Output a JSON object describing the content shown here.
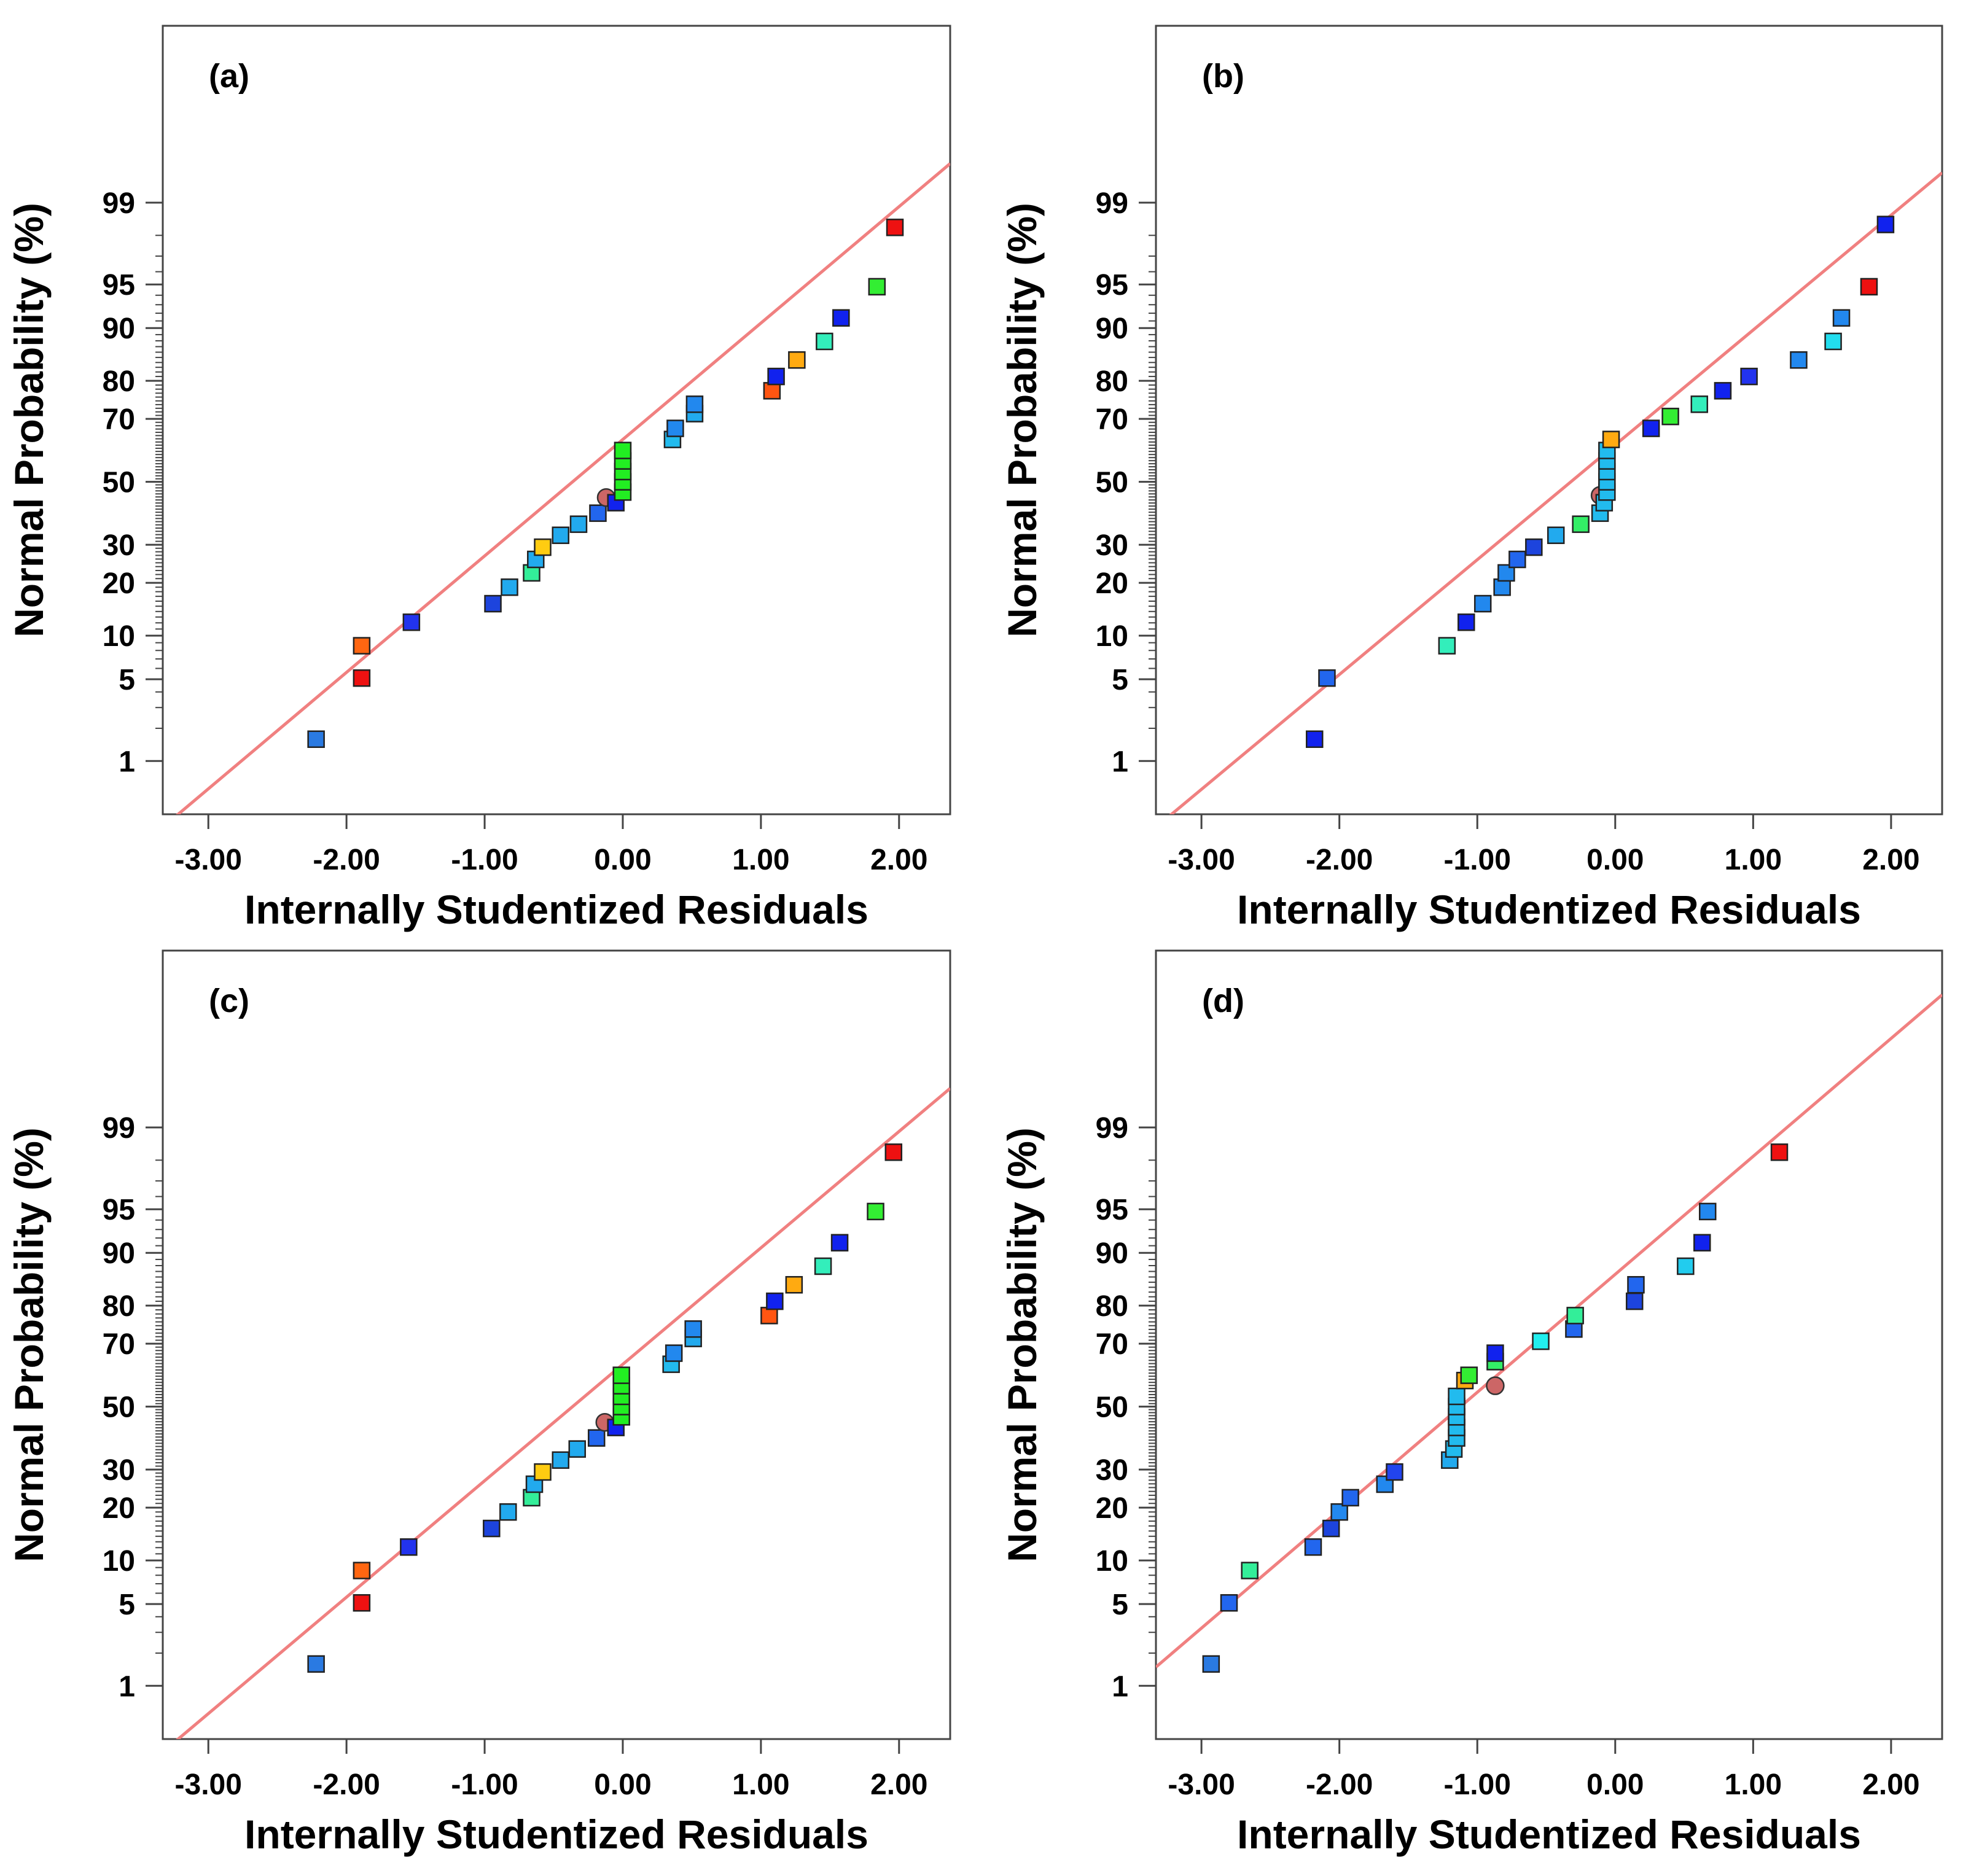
{
  "figure": {
    "x_axis_title": "Internally Studentized Residuals",
    "y_axis_title": "Normal Probability (%)",
    "x_ticks": [
      "-3.00",
      "-2.00",
      "-1.00",
      "0.00",
      "1.00",
      "2.00"
    ],
    "y_ticks": [
      "1",
      "5",
      "10",
      "20",
      "30",
      "50",
      "70",
      "80",
      "90",
      "95",
      "99"
    ]
  },
  "chart_data": [
    {
      "type": "scatter",
      "label": "(a)",
      "xlabel": "Internally Studentized Residuals",
      "ylabel": "Normal Probability (%)",
      "xlim": [
        -3.33,
        2.37
      ],
      "y_scale": "normal-probability",
      "grid": false,
      "reference_line": {
        "color": "#f08080",
        "points": [
          [
            -3.33,
            0.2
          ],
          [
            2.37,
            99.6
          ]
        ]
      },
      "points": [
        {
          "x": -2.22,
          "y": 1.6,
          "color": "#2a7ae2"
        },
        {
          "x": -1.89,
          "y": 5.1,
          "color": "#ee1111"
        },
        {
          "x": -1.89,
          "y": 8.6,
          "color": "#ff6611"
        },
        {
          "x": -1.53,
          "y": 12.1,
          "color": "#2233ee"
        },
        {
          "x": -0.94,
          "y": 15.5,
          "color": "#1d44dd"
        },
        {
          "x": -0.82,
          "y": 19.0,
          "color": "#22aaee"
        },
        {
          "x": -0.66,
          "y": 22.4,
          "color": "#33ee99"
        },
        {
          "x": -0.63,
          "y": 25.9,
          "color": "#22aaee"
        },
        {
          "x": -0.58,
          "y": 29.3,
          "color": "#ffcc11"
        },
        {
          "x": -0.45,
          "y": 32.8,
          "color": "#22aaee"
        },
        {
          "x": -0.32,
          "y": 36.2,
          "color": "#22aaee"
        },
        {
          "x": -0.18,
          "y": 39.7,
          "color": "#2266ee"
        },
        {
          "x": -0.12,
          "y": 44.8,
          "color": "#cc6666",
          "shape": "circle"
        },
        {
          "x": -0.05,
          "y": 43.1,
          "color": "#1122ee"
        },
        {
          "x": 0.0,
          "y": 46.6,
          "color": "#22ee22"
        },
        {
          "x": 0.0,
          "y": 50.0,
          "color": "#22ee22"
        },
        {
          "x": 0.0,
          "y": 53.4,
          "color": "#22ee22"
        },
        {
          "x": 0.0,
          "y": 56.9,
          "color": "#22ee22"
        },
        {
          "x": 0.0,
          "y": 60.3,
          "color": "#22ee22"
        },
        {
          "x": 0.36,
          "y": 63.8,
          "color": "#22bbee"
        },
        {
          "x": 0.38,
          "y": 67.2,
          "color": "#2288ee"
        },
        {
          "x": 0.52,
          "y": 71.5,
          "color": "#22aaee"
        },
        {
          "x": 0.52,
          "y": 74.1,
          "color": "#2288ee"
        },
        {
          "x": 1.08,
          "y": 77.6,
          "color": "#ff5511"
        },
        {
          "x": 1.11,
          "y": 81.0,
          "color": "#1122ee"
        },
        {
          "x": 1.26,
          "y": 84.5,
          "color": "#ffaa11"
        },
        {
          "x": 1.46,
          "y": 87.9,
          "color": "#33eebb"
        },
        {
          "x": 1.58,
          "y": 91.4,
          "color": "#1122ee"
        },
        {
          "x": 1.84,
          "y": 94.8,
          "color": "#33ee33"
        },
        {
          "x": 1.97,
          "y": 98.3,
          "color": "#ee1111"
        }
      ]
    },
    {
      "type": "scatter",
      "label": "(b)",
      "xlabel": "Internally Studentized Residuals",
      "ylabel": "Normal Probability (%)",
      "xlim": [
        -3.33,
        2.37
      ],
      "y_scale": "normal-probability",
      "grid": false,
      "reference_line": {
        "color": "#f08080",
        "points": [
          [
            -3.33,
            0.2
          ],
          [
            2.37,
            99.5
          ]
        ]
      },
      "points": [
        {
          "x": -2.18,
          "y": 1.6,
          "color": "#1122ee"
        },
        {
          "x": -2.09,
          "y": 5.1,
          "color": "#2266ee"
        },
        {
          "x": -1.22,
          "y": 8.6,
          "color": "#33eebb"
        },
        {
          "x": -1.08,
          "y": 12.1,
          "color": "#1122ee"
        },
        {
          "x": -0.96,
          "y": 15.5,
          "color": "#2288ee"
        },
        {
          "x": -0.82,
          "y": 19.0,
          "color": "#2288ee"
        },
        {
          "x": -0.79,
          "y": 22.4,
          "color": "#2288ee"
        },
        {
          "x": -0.71,
          "y": 25.9,
          "color": "#2266ee"
        },
        {
          "x": -0.59,
          "y": 29.3,
          "color": "#1d44dd"
        },
        {
          "x": -0.43,
          "y": 32.8,
          "color": "#22aaee"
        },
        {
          "x": -0.25,
          "y": 36.2,
          "color": "#33ee66"
        },
        {
          "x": -0.11,
          "y": 39.7,
          "color": "#22bbee"
        },
        {
          "x": -0.11,
          "y": 45.5,
          "color": "#cc6666",
          "shape": "circle"
        },
        {
          "x": -0.08,
          "y": 43.1,
          "color": "#22bbee"
        },
        {
          "x": -0.06,
          "y": 46.6,
          "color": "#22bbee"
        },
        {
          "x": -0.06,
          "y": 50.0,
          "color": "#22bbee"
        },
        {
          "x": -0.06,
          "y": 53.4,
          "color": "#22bbee"
        },
        {
          "x": -0.06,
          "y": 56.9,
          "color": "#22bbee"
        },
        {
          "x": -0.06,
          "y": 60.3,
          "color": "#22bbee"
        },
        {
          "x": -0.03,
          "y": 63.8,
          "color": "#ffaa11"
        },
        {
          "x": 0.26,
          "y": 67.2,
          "color": "#1122ee"
        },
        {
          "x": 0.4,
          "y": 70.7,
          "color": "#33ee33"
        },
        {
          "x": 0.61,
          "y": 74.1,
          "color": "#33eebb"
        },
        {
          "x": 0.78,
          "y": 77.6,
          "color": "#1122ee"
        },
        {
          "x": 0.97,
          "y": 81.0,
          "color": "#2233ee"
        },
        {
          "x": 1.33,
          "y": 84.5,
          "color": "#2288ee"
        },
        {
          "x": 1.58,
          "y": 87.9,
          "color": "#22ddee"
        },
        {
          "x": 1.64,
          "y": 91.4,
          "color": "#2288ee"
        },
        {
          "x": 1.84,
          "y": 94.8,
          "color": "#ee1111"
        },
        {
          "x": 1.96,
          "y": 98.4,
          "color": "#1122ee"
        }
      ]
    },
    {
      "type": "scatter",
      "label": "(c)",
      "xlabel": "Internally Studentized Residuals",
      "ylabel": "Normal Probability (%)",
      "xlim": [
        -3.33,
        2.37
      ],
      "y_scale": "normal-probability",
      "grid": false,
      "reference_line": {
        "color": "#f08080",
        "points": [
          [
            -3.33,
            0.2
          ],
          [
            2.37,
            99.6
          ]
        ]
      },
      "points": [
        {
          "x": -2.22,
          "y": 1.6,
          "color": "#2a7ae2"
        },
        {
          "x": -1.89,
          "y": 5.1,
          "color": "#ee1111"
        },
        {
          "x": -1.89,
          "y": 8.6,
          "color": "#ff6611"
        },
        {
          "x": -1.55,
          "y": 12.1,
          "color": "#2233ee"
        },
        {
          "x": -0.95,
          "y": 15.5,
          "color": "#1d44dd"
        },
        {
          "x": -0.83,
          "y": 19.0,
          "color": "#22aaee"
        },
        {
          "x": -0.66,
          "y": 22.4,
          "color": "#33ee99"
        },
        {
          "x": -0.64,
          "y": 25.9,
          "color": "#22aaee"
        },
        {
          "x": -0.58,
          "y": 29.3,
          "color": "#ffcc11"
        },
        {
          "x": -0.45,
          "y": 32.8,
          "color": "#22aaee"
        },
        {
          "x": -0.33,
          "y": 36.2,
          "color": "#22aaee"
        },
        {
          "x": -0.19,
          "y": 39.7,
          "color": "#2266ee"
        },
        {
          "x": -0.13,
          "y": 44.8,
          "color": "#cc6666",
          "shape": "circle"
        },
        {
          "x": -0.05,
          "y": 43.1,
          "color": "#1122ee"
        },
        {
          "x": -0.01,
          "y": 46.6,
          "color": "#22ee22"
        },
        {
          "x": -0.01,
          "y": 50.0,
          "color": "#22ee22"
        },
        {
          "x": -0.01,
          "y": 53.4,
          "color": "#22ee22"
        },
        {
          "x": -0.01,
          "y": 56.9,
          "color": "#22ee22"
        },
        {
          "x": -0.01,
          "y": 60.3,
          "color": "#22ee22"
        },
        {
          "x": 0.35,
          "y": 63.8,
          "color": "#22bbee"
        },
        {
          "x": 0.37,
          "y": 67.2,
          "color": "#2288ee"
        },
        {
          "x": 0.51,
          "y": 71.5,
          "color": "#22aaee"
        },
        {
          "x": 0.51,
          "y": 74.1,
          "color": "#2288ee"
        },
        {
          "x": 1.06,
          "y": 77.6,
          "color": "#ff5511"
        },
        {
          "x": 1.1,
          "y": 81.0,
          "color": "#1122ee"
        },
        {
          "x": 1.24,
          "y": 84.5,
          "color": "#ffaa11"
        },
        {
          "x": 1.45,
          "y": 87.9,
          "color": "#33eebb"
        },
        {
          "x": 1.57,
          "y": 91.4,
          "color": "#1122ee"
        },
        {
          "x": 1.83,
          "y": 94.8,
          "color": "#33ee33"
        },
        {
          "x": 1.96,
          "y": 98.3,
          "color": "#ee1111"
        }
      ]
    },
    {
      "type": "scatter",
      "label": "(d)",
      "xlabel": "Internally Studentized Residuals",
      "ylabel": "Normal Probability (%)",
      "xlim": [
        -3.33,
        2.37
      ],
      "y_scale": "normal-probability",
      "grid": false,
      "reference_line": {
        "color": "#f08080",
        "points": [
          [
            -3.33,
            1.5
          ],
          [
            2.37,
            99.97
          ]
        ]
      },
      "points": [
        {
          "x": -2.93,
          "y": 1.6,
          "color": "#2a7ae2"
        },
        {
          "x": -2.8,
          "y": 5.1,
          "color": "#2266ee"
        },
        {
          "x": -2.65,
          "y": 8.6,
          "color": "#33ee99"
        },
        {
          "x": -2.19,
          "y": 12.1,
          "color": "#2266ee"
        },
        {
          "x": -2.06,
          "y": 15.5,
          "color": "#1d44dd"
        },
        {
          "x": -2.0,
          "y": 19.0,
          "color": "#2288ee"
        },
        {
          "x": -1.92,
          "y": 22.4,
          "color": "#2266ee"
        },
        {
          "x": -1.67,
          "y": 25.9,
          "color": "#2288ee"
        },
        {
          "x": -1.6,
          "y": 29.3,
          "color": "#2244ee"
        },
        {
          "x": -1.2,
          "y": 32.8,
          "color": "#22aaee"
        },
        {
          "x": -1.17,
          "y": 36.2,
          "color": "#22bbee"
        },
        {
          "x": -1.15,
          "y": 39.7,
          "color": "#22bbee"
        },
        {
          "x": -1.15,
          "y": 43.1,
          "color": "#22bbee"
        },
        {
          "x": -1.15,
          "y": 46.6,
          "color": "#22bbee"
        },
        {
          "x": -1.15,
          "y": 50.0,
          "color": "#22bbee"
        },
        {
          "x": -1.15,
          "y": 53.4,
          "color": "#22bbee"
        },
        {
          "x": -0.87,
          "y": 56.9,
          "color": "#cc6666",
          "shape": "circle"
        },
        {
          "x": -1.09,
          "y": 58.6,
          "color": "#ffaa11"
        },
        {
          "x": -1.06,
          "y": 60.3,
          "color": "#33ee33"
        },
        {
          "x": -0.87,
          "y": 64.6,
          "color": "#33ee66"
        },
        {
          "x": -0.87,
          "y": 67.2,
          "color": "#1122ee"
        },
        {
          "x": -0.54,
          "y": 70.7,
          "color": "#22eeee"
        },
        {
          "x": -0.3,
          "y": 74.1,
          "color": "#2266ee"
        },
        {
          "x": -0.29,
          "y": 77.6,
          "color": "#33ee99"
        },
        {
          "x": 0.14,
          "y": 81.0,
          "color": "#1d44dd"
        },
        {
          "x": 0.15,
          "y": 84.5,
          "color": "#2266ee"
        },
        {
          "x": 0.51,
          "y": 87.9,
          "color": "#22ccee"
        },
        {
          "x": 0.63,
          "y": 91.4,
          "color": "#1122ee"
        },
        {
          "x": 0.67,
          "y": 94.8,
          "color": "#2288ee"
        },
        {
          "x": 1.19,
          "y": 98.3,
          "color": "#ee1111"
        }
      ]
    }
  ]
}
